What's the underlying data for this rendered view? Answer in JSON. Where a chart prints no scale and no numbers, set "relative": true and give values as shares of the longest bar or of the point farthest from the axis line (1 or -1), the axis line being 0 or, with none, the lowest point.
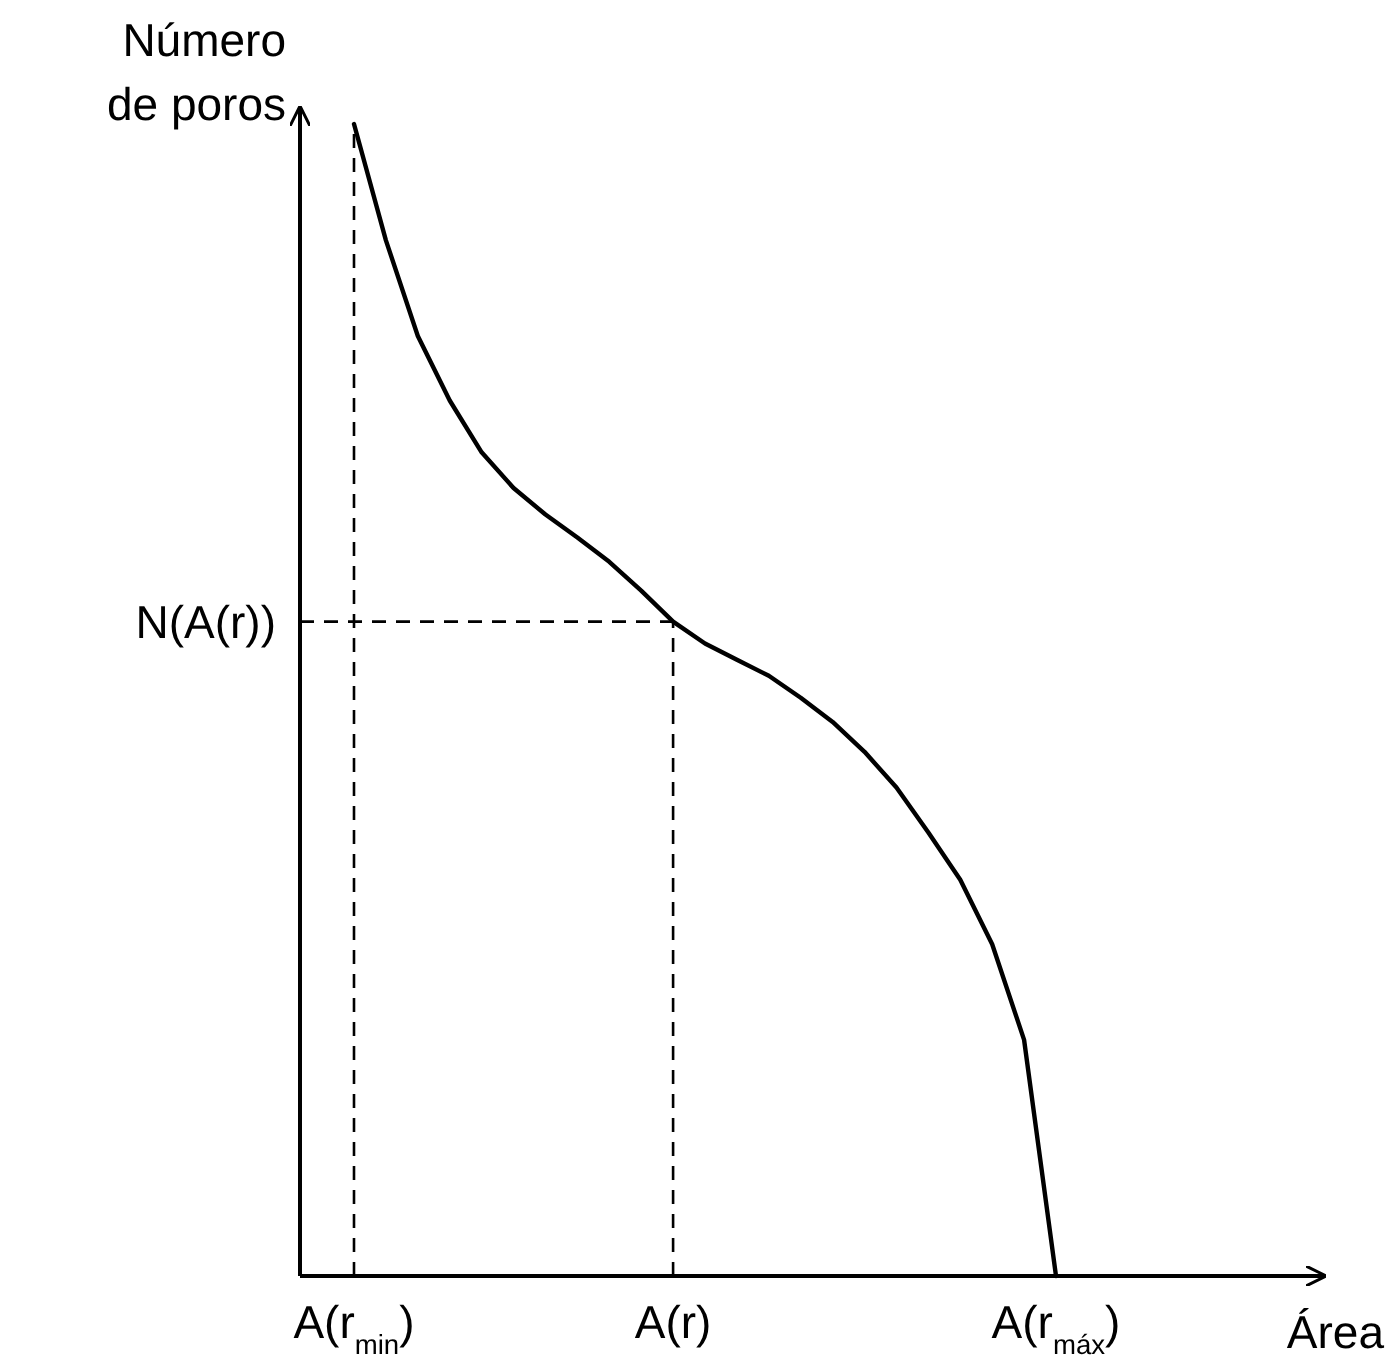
{
  "chart_data": {
    "type": "line",
    "relative": true,
    "xlabel": "Área",
    "ylabel": "Número de poros",
    "categories": [
      "A(r$_{min}$)",
      null,
      null,
      null,
      null,
      null,
      null,
      null,
      null,
      null,
      "A(r)",
      null,
      null,
      null,
      null,
      null,
      null,
      null,
      null,
      null,
      null,
      null,
      "A(r$_{máx}$)"
    ],
    "series": [
      {
        "color": "#000000",
        "values": [
          1,
          0.899,
          0.816,
          0.76,
          0.715,
          0.684,
          0.661,
          0.641,
          0.62,
          0.595,
          0.568,
          0.549,
          0.535,
          0.521,
          0.502,
          0.481,
          0.455,
          0.424,
          0.385,
          0.344,
          0.288,
          0.205,
          0
        ]
      }
    ],
    "ref_lines": [
      {
        "axis": "x",
        "value": "A(r$_{min}$)",
        "line_style": "dashed",
        "color": "#000000"
      },
      {
        "axis": "x",
        "value": "A(r)",
        "line_style": "dashed",
        "color": "#000000"
      },
      {
        "axis": "y",
        "value": 0.568,
        "label": "N(A(r))",
        "line_style": "dashed",
        "color": "#000000"
      }
    ],
    "grid": false,
    "marker": "none",
    "line_style": "solid"
  }
}
